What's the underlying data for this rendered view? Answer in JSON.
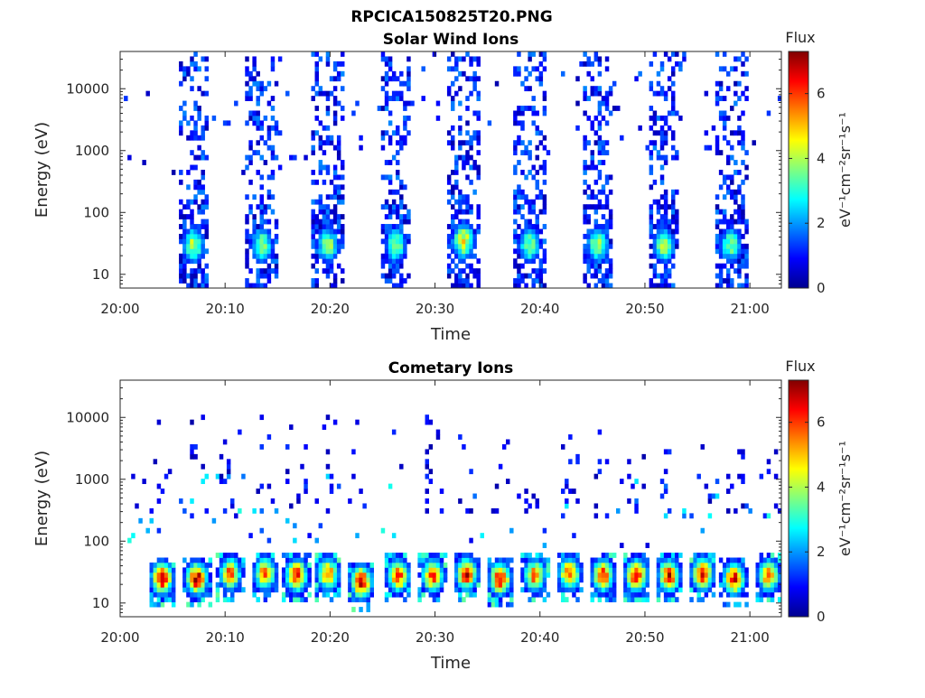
{
  "figure_title": "RPCICA150825T20.PNG",
  "colors": {
    "axis": "#262626",
    "background": "#ffffff",
    "colormap": "jet"
  },
  "chart_data": [
    {
      "type": "heatmap",
      "title": "Solar Wind Ions",
      "xlabel": "Time",
      "ylabel": "Energy (eV)",
      "x_ticks": [
        "20:00",
        "20:10",
        "20:20",
        "20:30",
        "20:40",
        "20:50",
        "21:00"
      ],
      "y_ticks": [
        "10",
        "100",
        "1000",
        "10000"
      ],
      "y_scale": "log",
      "x_range": [
        "20:00",
        "21:03"
      ],
      "y_range": [
        6,
        40000
      ],
      "colorbar": {
        "title": "Flux",
        "label": "eV⁻¹cm⁻²sr⁻¹s⁻¹",
        "ticks": [
          "0",
          "2",
          "4",
          "6"
        ],
        "range": [
          0,
          7.3
        ]
      },
      "bursts": [
        {
          "start": "20:05.5",
          "end": "20:08.5",
          "peak_energy_eV": 30,
          "peak_flux": 4.5
        },
        {
          "start": "20:12.0",
          "end": "20:15.0",
          "peak_energy_eV": 30,
          "peak_flux": 4.0
        },
        {
          "start": "20:18.3",
          "end": "20:21.3",
          "peak_energy_eV": 30,
          "peak_flux": 4.2
        },
        {
          "start": "20:24.8",
          "end": "20:27.8",
          "peak_energy_eV": 30,
          "peak_flux": 4.0
        },
        {
          "start": "20:31.2",
          "end": "20:34.2",
          "peak_energy_eV": 35,
          "peak_flux": 5.0
        },
        {
          "start": "20:37.5",
          "end": "20:40.5",
          "peak_energy_eV": 30,
          "peak_flux": 4.0
        },
        {
          "start": "20:44.0",
          "end": "20:47.0",
          "peak_energy_eV": 30,
          "peak_flux": 4.3
        },
        {
          "start": "20:50.3",
          "end": "20:53.3",
          "peak_energy_eV": 30,
          "peak_flux": 4.2
        },
        {
          "start": "20:56.7",
          "end": "20:59.7",
          "peak_energy_eV": 30,
          "peak_flux": 4.0
        }
      ]
    },
    {
      "type": "heatmap",
      "title": "Cometary Ions",
      "xlabel": "Time",
      "ylabel": "Energy (eV)",
      "x_ticks": [
        "20:00",
        "20:10",
        "20:20",
        "20:30",
        "20:40",
        "20:50",
        "21:00"
      ],
      "y_ticks": [
        "10",
        "100",
        "1000",
        "10000"
      ],
      "y_scale": "log",
      "x_range": [
        "20:00",
        "21:03"
      ],
      "y_range": [
        6,
        40000
      ],
      "colorbar": {
        "title": "Flux",
        "label": "eV⁻¹cm⁻²sr⁻¹s⁻¹",
        "ticks": [
          "0",
          "2",
          "4",
          "6"
        ],
        "range": [
          0,
          7.3
        ]
      },
      "blobs": [
        {
          "center": "20:04.0",
          "energy_eV": 25,
          "flux": 7.0
        },
        {
          "center": "20:07.3",
          "energy_eV": 25,
          "flux": 7.2
        },
        {
          "center": "20:10.5",
          "energy_eV": 30,
          "flux": 6.0
        },
        {
          "center": "20:13.8",
          "energy_eV": 30,
          "flux": 6.0
        },
        {
          "center": "20:16.8",
          "energy_eV": 28,
          "flux": 6.8
        },
        {
          "center": "20:19.8",
          "energy_eV": 30,
          "flux": 6.0
        },
        {
          "center": "20:23.0",
          "energy_eV": 22,
          "flux": 7.2
        },
        {
          "center": "20:26.5",
          "energy_eV": 28,
          "flux": 6.5
        },
        {
          "center": "20:29.8",
          "energy_eV": 28,
          "flux": 6.5
        },
        {
          "center": "20:33.0",
          "energy_eV": 30,
          "flux": 6.8
        },
        {
          "center": "20:36.2",
          "energy_eV": 25,
          "flux": 7.0
        },
        {
          "center": "20:39.5",
          "energy_eV": 28,
          "flux": 6.0
        },
        {
          "center": "20:42.8",
          "energy_eV": 30,
          "flux": 6.2
        },
        {
          "center": "20:46.0",
          "energy_eV": 28,
          "flux": 6.5
        },
        {
          "center": "20:49.2",
          "energy_eV": 28,
          "flux": 7.0
        },
        {
          "center": "20:52.3",
          "energy_eV": 28,
          "flux": 6.8
        },
        {
          "center": "20:55.5",
          "energy_eV": 30,
          "flux": 6.8
        },
        {
          "center": "20:58.5",
          "energy_eV": 25,
          "flux": 6.8
        },
        {
          "center": "21:01.8",
          "energy_eV": 28,
          "flux": 6.0
        }
      ]
    }
  ]
}
